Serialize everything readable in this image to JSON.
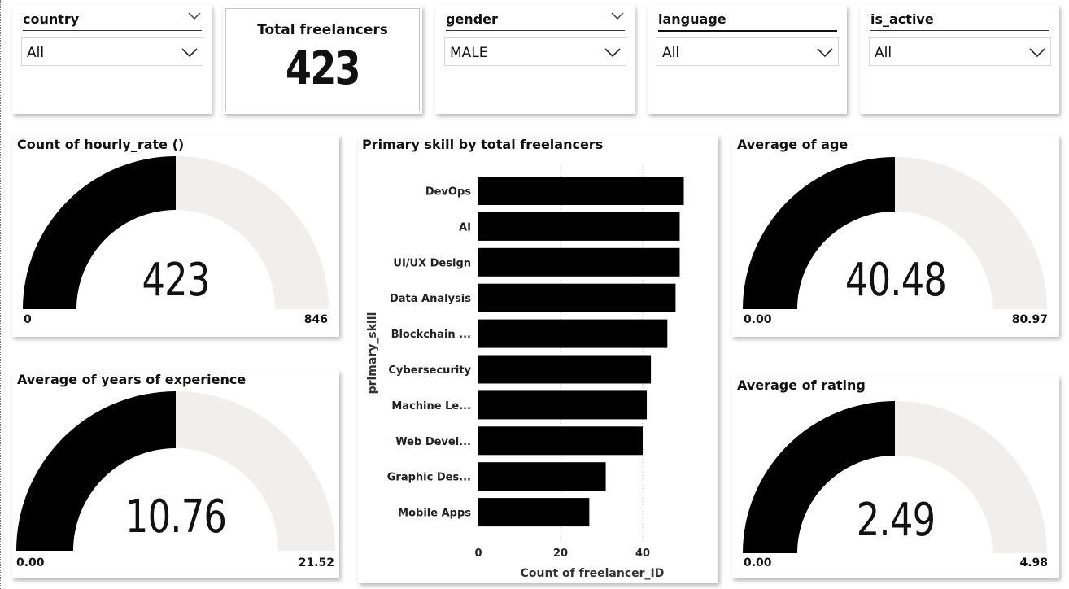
{
  "slicers": [
    {
      "title": "country",
      "value": "All"
    },
    {
      "title": "gender",
      "value": "MALE"
    },
    {
      "title": "language",
      "value": "All"
    },
    {
      "title": "is_active",
      "value": "All"
    }
  ],
  "kpi": {
    "label": "Total freelancers",
    "value": "423"
  },
  "gauges": {
    "hourly": {
      "title": "Count of hourly_rate ()",
      "value": "423",
      "min": "0",
      "max": "846",
      "fraction": 0.5
    },
    "age": {
      "title": "Average of age",
      "value": "40.48",
      "min": "0.00",
      "max": "80.97",
      "fraction": 0.5
    },
    "experience": {
      "title": "Average of years of experience",
      "value": "10.76",
      "min": "0.00",
      "max": "21.52",
      "fraction": 0.5
    },
    "rating": {
      "title": "Average of rating",
      "value": "2.49",
      "min": "0.00",
      "max": "4.98",
      "fraction": 0.5
    }
  },
  "colors": {
    "fill": "#000000",
    "track": "#f0efee",
    "bar": "#000000"
  },
  "chart_data": {
    "type": "bar",
    "orientation": "horizontal",
    "title": "Primary skill by total freelancers",
    "xlabel": "Count of freelancer_ID",
    "ylabel": "primary_skill",
    "categories": [
      "DevOps",
      "AI",
      "UI/UX Design",
      "Data Analysis",
      "Blockchain ...",
      "Cybersecurity",
      "Machine Le...",
      "Web Devel...",
      "Graphic Des...",
      "Mobile Apps"
    ],
    "values": [
      50,
      49,
      49,
      48,
      46,
      42,
      41,
      40,
      31,
      27
    ],
    "xticks": [
      0,
      20,
      40
    ],
    "xlim": [
      0,
      52
    ],
    "grid": true
  }
}
